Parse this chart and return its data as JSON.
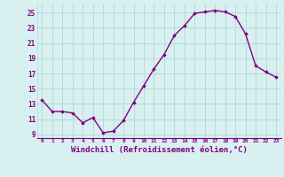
{
  "x": [
    0,
    1,
    2,
    3,
    4,
    5,
    6,
    7,
    8,
    9,
    10,
    11,
    12,
    13,
    14,
    15,
    16,
    17,
    18,
    19,
    20,
    21,
    22,
    23
  ],
  "y": [
    13.5,
    12.0,
    12.0,
    11.8,
    10.5,
    11.2,
    9.2,
    9.4,
    10.8,
    13.2,
    15.4,
    17.6,
    19.5,
    22.0,
    23.3,
    24.9,
    25.1,
    25.3,
    25.1,
    24.5,
    22.2,
    18.0,
    17.2,
    16.5
  ],
  "line_color": "#800080",
  "marker": "D",
  "marker_size": 1.8,
  "line_width": 1.0,
  "xlabel": "Windchill (Refroidissement éolien,°C)",
  "xlabel_fontsize": 6.5,
  "ylabel_ticks": [
    9,
    11,
    13,
    15,
    17,
    19,
    21,
    23,
    25
  ],
  "ylim": [
    8.5,
    26.2
  ],
  "xlim": [
    -0.5,
    23.5
  ],
  "xtick_labels": [
    "0",
    "1",
    "2",
    "3",
    "4",
    "5",
    "6",
    "7",
    "8",
    "9",
    "10",
    "11",
    "12",
    "13",
    "14",
    "15",
    "16",
    "17",
    "18",
    "19",
    "20",
    "21",
    "22",
    "23"
  ],
  "background_color": "#d8f0f0",
  "grid_color": "#b0d8d8",
  "tick_color": "#800080",
  "label_color": "#800080"
}
